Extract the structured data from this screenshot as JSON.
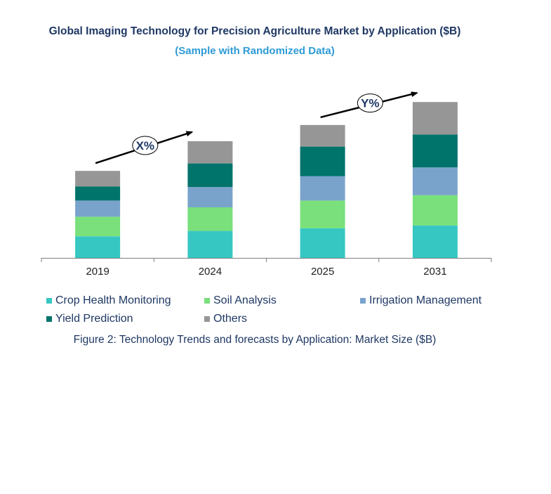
{
  "title": "Global Imaging Technology for Precision Agriculture Market by Application ($B)",
  "subtitle": "(Sample with Randomized Data)",
  "caption": "Figure 2: Technology  Trends  and forecasts by Application: Market Size ($B)",
  "colors": {
    "Crop Health Monitoring": "#36c7c2",
    "Soil Analysis": "#79e07b",
    "Irrigation Management": "#7aa3cc",
    "Yield Prediction": "#00736b",
    "Others": "#969696"
  },
  "annotations": [
    {
      "text": "X%",
      "from": "2019",
      "to": "2024"
    },
    {
      "text": "Y%",
      "from": "2025",
      "to": "2031"
    }
  ],
  "chart_data": {
    "type": "bar",
    "stacked": true,
    "categories": [
      "2019",
      "2024",
      "2025",
      "2031"
    ],
    "series": [
      {
        "name": "Crop Health Monitoring",
        "values": [
          32,
          40,
          44,
          48
        ]
      },
      {
        "name": "Soil Analysis",
        "values": [
          29,
          35,
          41,
          45
        ]
      },
      {
        "name": "Irrigation Management",
        "values": [
          24,
          30,
          36,
          41
        ]
      },
      {
        "name": "Yield Prediction",
        "values": [
          21,
          35,
          44,
          49
        ]
      },
      {
        "name": "Others",
        "values": [
          23,
          33,
          32,
          48
        ]
      }
    ],
    "ylim": [
      0,
      250
    ],
    "grid": false,
    "legend_position": "bottom"
  }
}
